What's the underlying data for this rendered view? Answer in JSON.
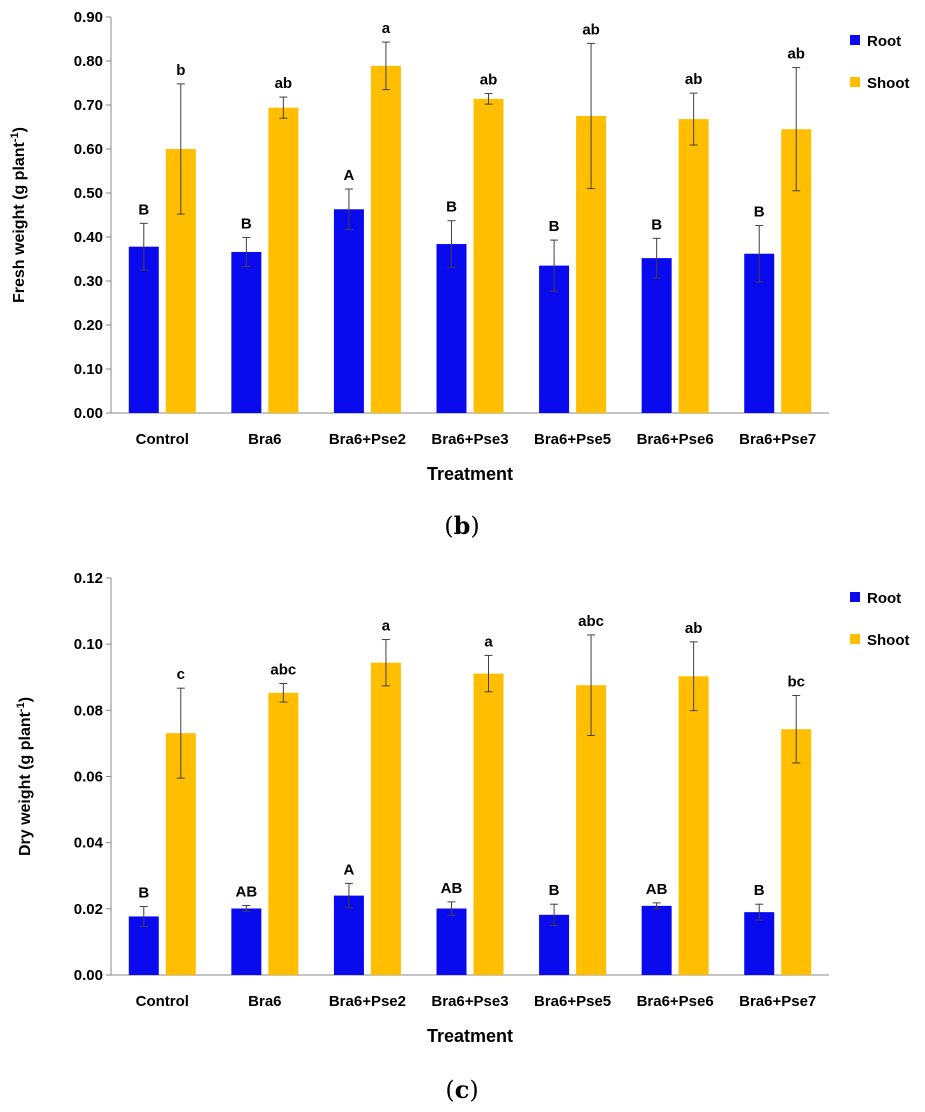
{
  "colors": {
    "root": "#0A0AEF",
    "shoot": "#FFBF00",
    "axis": "#8a8a8a",
    "error": "#404040"
  },
  "chart_data": [
    {
      "type": "bar",
      "panel": "b",
      "xlabel": "Treatment",
      "ylabel": "Fresh weight (g plant⁻¹)",
      "ylabel_main": "Fresh weight (g plant",
      "ylabel_sup": "-1",
      "ylabel_end": ")",
      "ylim": [
        0,
        0.9
      ],
      "yticks": [
        "0.00",
        "0.10",
        "0.20",
        "0.30",
        "0.40",
        "0.50",
        "0.60",
        "0.70",
        "0.80",
        "0.90"
      ],
      "categories": [
        "Control",
        "Bra6",
        "Bra6+Pse2",
        "Bra6+Pse3",
        "Bra6+Pse5",
        "Bra6+Pse6",
        "Bra6+Pse7"
      ],
      "legend": [
        "Root",
        "Shoot"
      ],
      "series": [
        {
          "name": "Root",
          "values": [
            0.378,
            0.366,
            0.463,
            0.384,
            0.335,
            0.352,
            0.362
          ],
          "errors": [
            0.053,
            0.033,
            0.046,
            0.053,
            0.058,
            0.045,
            0.064
          ],
          "letters": [
            "B",
            "B",
            "A",
            "B",
            "B",
            "B",
            "B"
          ]
        },
        {
          "name": "Shoot",
          "values": [
            0.6,
            0.694,
            0.789,
            0.714,
            0.675,
            0.668,
            0.645
          ],
          "errors": [
            0.148,
            0.024,
            0.054,
            0.012,
            0.165,
            0.059,
            0.14
          ],
          "letters": [
            "b",
            "ab",
            "a",
            "ab",
            "ab",
            "ab",
            "ab"
          ]
        }
      ]
    },
    {
      "type": "bar",
      "panel": "c",
      "xlabel": "Treatment",
      "ylabel": "Dry weight (g plant⁻¹)",
      "ylabel_main": "Dry weight (g plant",
      "ylabel_sup": "-1",
      "ylabel_end": ")",
      "ylim": [
        0,
        0.12
      ],
      "yticks": [
        "0.00",
        "0.02",
        "0.04",
        "0.06",
        "0.08",
        "0.10",
        "0.12"
      ],
      "categories": [
        "Control",
        "Bra6",
        "Bra6+Pse2",
        "Bra6+Pse3",
        "Bra6+Pse5",
        "Bra6+Pse6",
        "Bra6+Pse7"
      ],
      "legend": [
        "Root",
        "Shoot"
      ],
      "series": [
        {
          "name": "Root",
          "values": [
            0.0177,
            0.0201,
            0.024,
            0.0201,
            0.0182,
            0.0209,
            0.019
          ],
          "errors": [
            0.003,
            0.0009,
            0.0037,
            0.002,
            0.0032,
            0.0009,
            0.0024
          ],
          "letters": [
            "B",
            "AB",
            "A",
            "AB",
            "B",
            "AB",
            "B"
          ]
        },
        {
          "name": "Shoot",
          "values": [
            0.0731,
            0.0853,
            0.0944,
            0.0911,
            0.0876,
            0.0903,
            0.0743
          ],
          "errors": [
            0.0136,
            0.0028,
            0.007,
            0.0055,
            0.0152,
            0.0104,
            0.0102
          ],
          "letters": [
            "c",
            "abc",
            "a",
            "a",
            "abc",
            "ab",
            "bc"
          ]
        }
      ]
    }
  ]
}
